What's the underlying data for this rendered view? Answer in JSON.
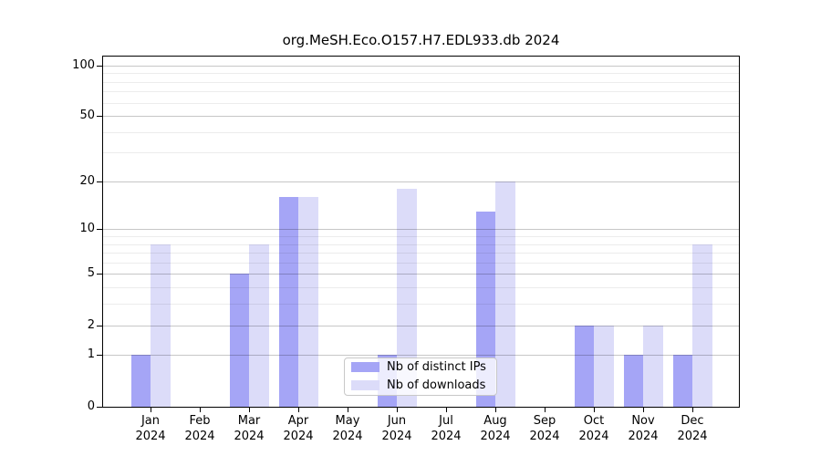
{
  "title": "org.MeSH.Eco.O157.H7.EDL933.db 2024",
  "chart_data": {
    "type": "bar",
    "title": "org.MeSH.Eco.O157.H7.EDL933.db 2024",
    "categories": [
      "Jan",
      "Feb",
      "Mar",
      "Apr",
      "May",
      "Jun",
      "Jul",
      "Aug",
      "Sep",
      "Oct",
      "Nov",
      "Dec"
    ],
    "year": "2024",
    "series": [
      {
        "name": "Nb of distinct IPs",
        "color": "#a5a5f6",
        "values": [
          1,
          0,
          5,
          16,
          0,
          1,
          0,
          13,
          0,
          2,
          1,
          1
        ]
      },
      {
        "name": "Nb of downloads",
        "color": "#dcdcf9",
        "values": [
          8,
          0,
          8,
          16,
          0,
          18,
          0,
          20,
          0,
          2,
          2,
          8
        ]
      }
    ],
    "yscale": "log10(1+x)",
    "ylim": [
      0,
      113
    ],
    "yticks": [
      0,
      1,
      2,
      5,
      10,
      20,
      50,
      100
    ],
    "minor_yticks": [
      3,
      4,
      6,
      7,
      8,
      9,
      30,
      40,
      60,
      70,
      80,
      90
    ],
    "grid": true,
    "legend_position": "lower center",
    "bar_group": "paired side-by-side per month"
  },
  "legend": {
    "items": [
      {
        "label": "Nb of distinct IPs",
        "color": "#a5a5f6"
      },
      {
        "label": "Nb of downloads",
        "color": "#dcdcf9"
      }
    ]
  },
  "colors": {
    "background": "#ffffff",
    "spine": "#000000",
    "grid_major": "rgba(0,0,0,0.22)",
    "grid_minor": "rgba(0,0,0,0.075)",
    "text": "#000000"
  }
}
